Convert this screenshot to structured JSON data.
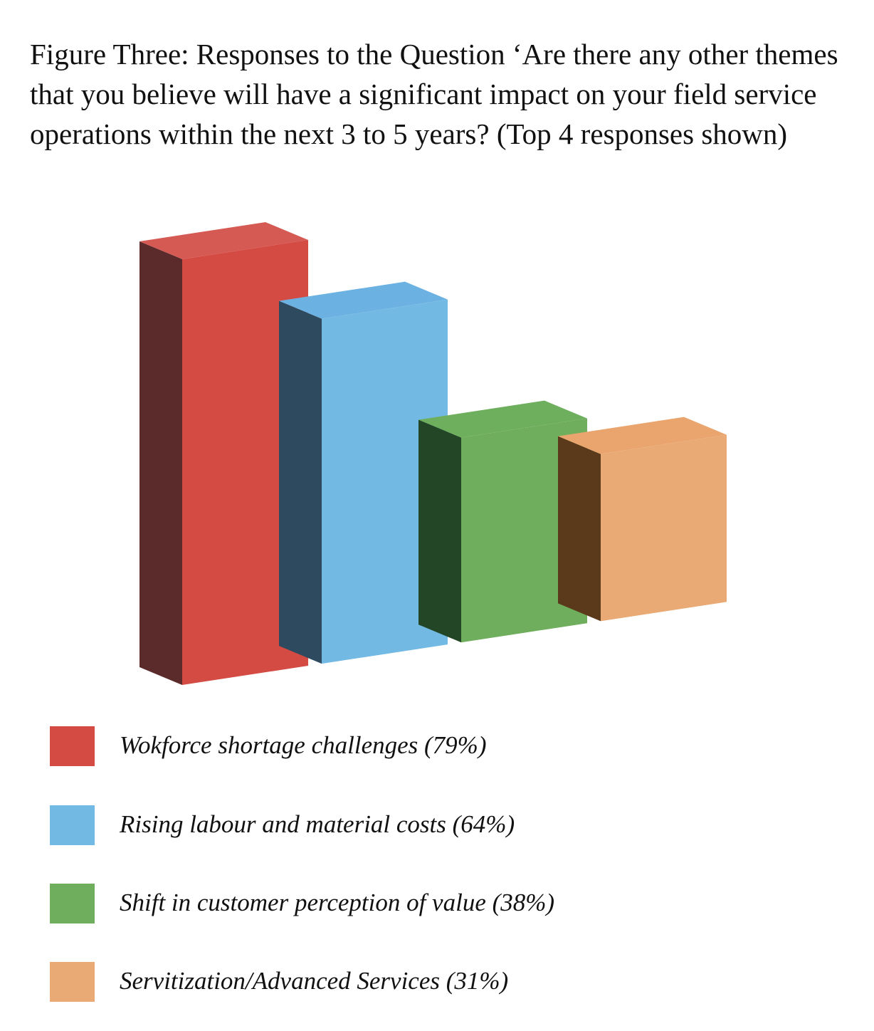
{
  "title": "Figure Three: Responses to the Question ‘Are there any other themes that you believe will have a significant impact on your field service operations within the next 3 to 5 years? (Top 4 responses shown)",
  "chart_data": {
    "type": "bar",
    "style": "3d",
    "categories": [
      "Wokforce shortage challenges",
      "Rising labour and material costs",
      "Shift in customer perception of value",
      "Servitization/Advanced Services"
    ],
    "values": [
      79,
      64,
      38,
      31
    ],
    "unit": "%",
    "colors": {
      "front": [
        "#d44b43",
        "#72b9e4",
        "#6fae5c",
        "#e9aa75"
      ],
      "top": [
        "#d65a54",
        "#6bb2e2",
        "#6eaf5e",
        "#e9a56d"
      ],
      "side": [
        "#5b2b2b",
        "#2d4a5f",
        "#234726",
        "#5b3a1b"
      ]
    },
    "legend_labels": [
      "Wokforce shortage challenges (79%)",
      "Rising labour and material costs (64%)",
      "Shift in customer perception of value (38%)",
      "Servitization/Advanced Services (31%)"
    ],
    "legend_position": "bottom",
    "grid": false,
    "axes_visible": false
  }
}
